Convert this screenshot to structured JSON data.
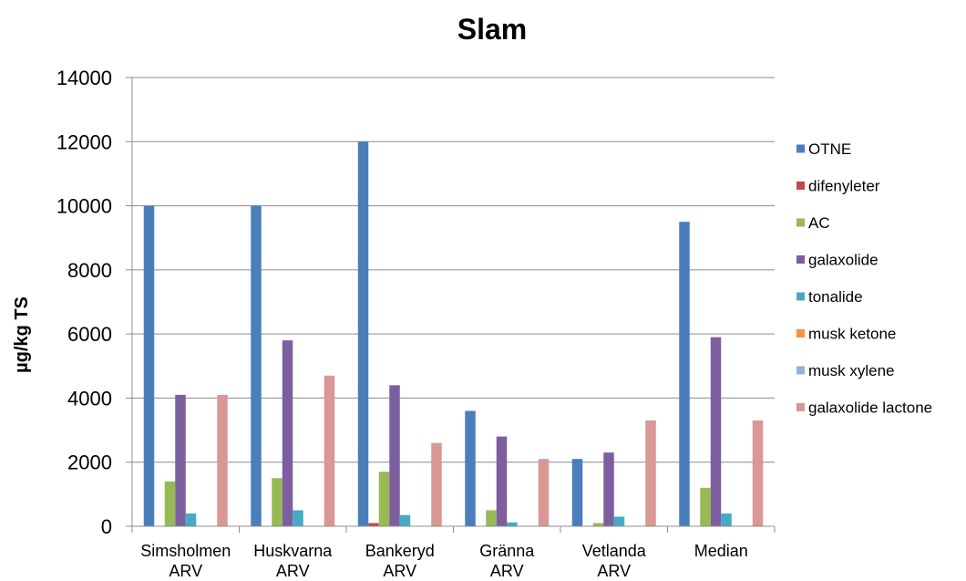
{
  "chart_data": {
    "type": "bar",
    "title": "Slam",
    "xlabel": "",
    "ylabel": "µg/kg TS",
    "ylim": [
      0,
      14000
    ],
    "yticks": [
      0,
      2000,
      4000,
      6000,
      8000,
      10000,
      12000,
      14000
    ],
    "grid": true,
    "legend_position": "right",
    "categories": [
      [
        "Simsholmen",
        "ARV"
      ],
      [
        "Huskvarna",
        "ARV"
      ],
      [
        "Bankeryd",
        "ARV"
      ],
      [
        "Gränna",
        "ARV"
      ],
      [
        "Vetlanda",
        "ARV"
      ],
      [
        "Median"
      ]
    ],
    "series": [
      {
        "name": "OTNE",
        "color": "#4a7ebb",
        "values": [
          10000,
          10000,
          12000,
          3600,
          2100,
          9500
        ]
      },
      {
        "name": "difenyleter",
        "color": "#be4b48",
        "values": [
          0,
          0,
          100,
          0,
          0,
          0
        ]
      },
      {
        "name": "AC",
        "color": "#98b954",
        "values": [
          1400,
          1500,
          1700,
          500,
          100,
          1200
        ]
      },
      {
        "name": "galaxolide",
        "color": "#7d5fa0",
        "values": [
          4100,
          5800,
          4400,
          2800,
          2300,
          5900
        ]
      },
      {
        "name": "tonalide",
        "color": "#46aac5",
        "values": [
          400,
          500,
          350,
          120,
          300,
          400
        ]
      },
      {
        "name": "musk ketone",
        "color": "#f69240",
        "values": [
          0,
          0,
          0,
          0,
          0,
          0
        ]
      },
      {
        "name": "musk xylene",
        "color": "#95b3d7",
        "values": [
          0,
          0,
          0,
          0,
          0,
          0
        ]
      },
      {
        "name": "galaxolide lactone",
        "color": "#d99795",
        "values": [
          4100,
          4700,
          2600,
          2100,
          3300,
          3300
        ]
      }
    ]
  }
}
